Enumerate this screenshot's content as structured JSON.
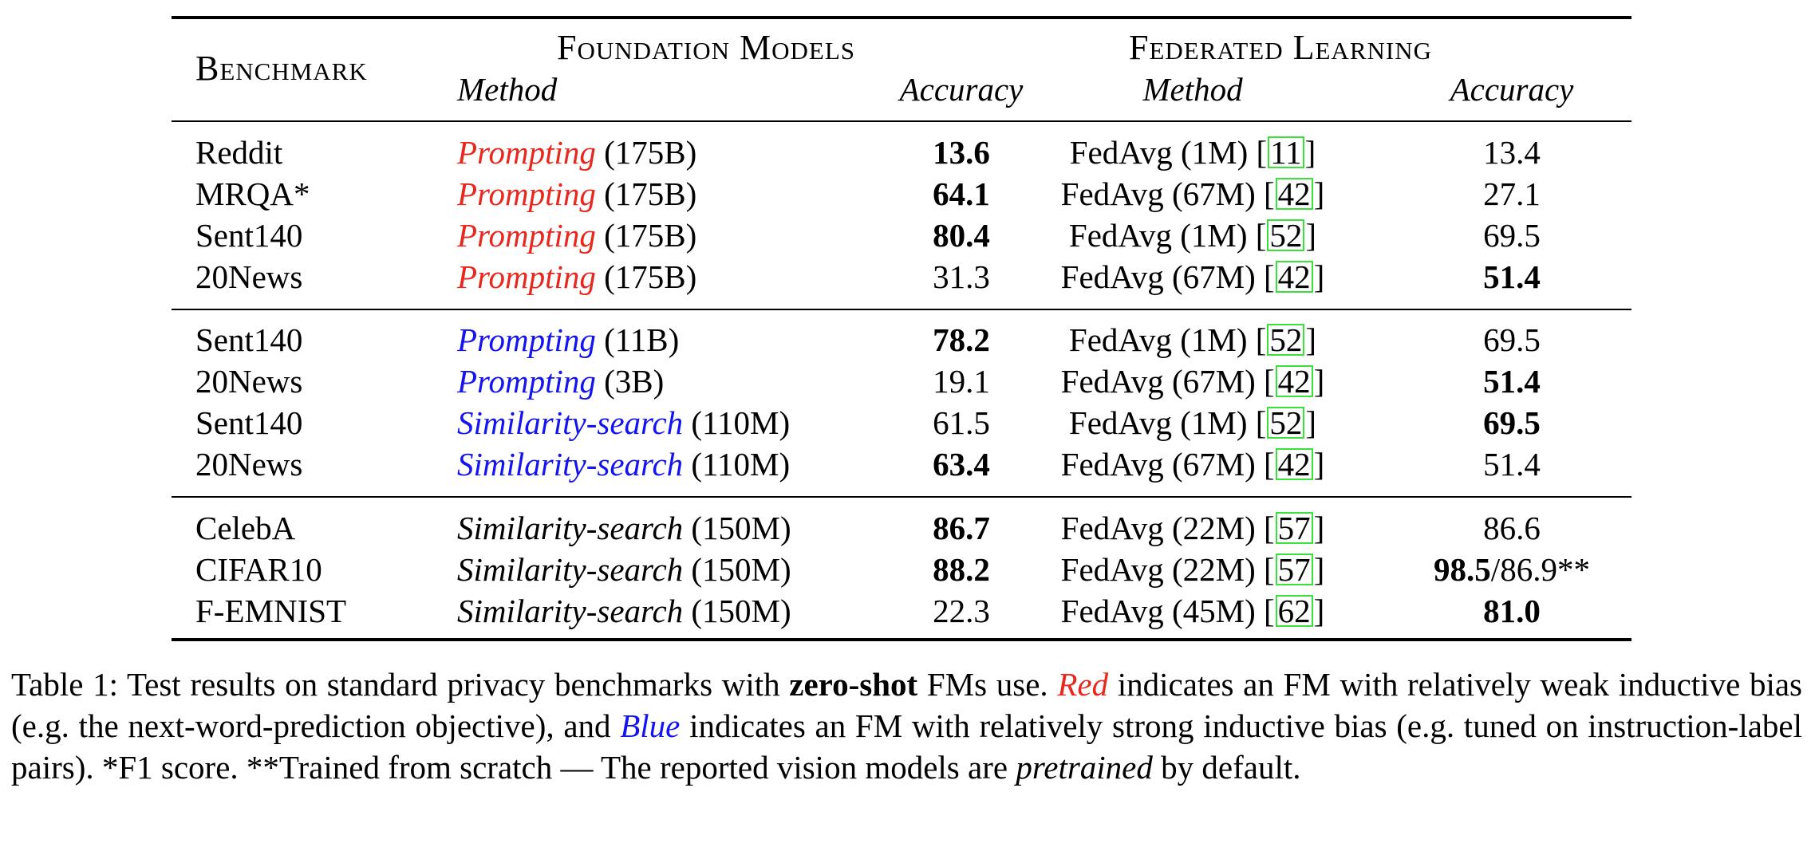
{
  "header": {
    "benchmark": "Benchmark",
    "group_fm": "Foundation Models",
    "group_fl": "Federated Learning",
    "method": "Method",
    "accuracy": "Accuracy"
  },
  "rows": [
    {
      "benchmark": "Reddit",
      "fm_method": "Prompting",
      "fm_size": " (175B)",
      "fm_color": "red",
      "fm_acc": "13.6",
      "fm_bold": true,
      "fl_method": "FedAvg (1M) [",
      "fl_cite": "11",
      "fl_close": "]",
      "fl_acc": "13.4",
      "fl_bold": false
    },
    {
      "benchmark": "MRQA*",
      "fm_method": "Prompting",
      "fm_size": " (175B)",
      "fm_color": "red",
      "fm_acc": "64.1",
      "fm_bold": true,
      "fl_method": "FedAvg (67M) [",
      "fl_cite": "42",
      "fl_close": "]",
      "fl_acc": "27.1",
      "fl_bold": false
    },
    {
      "benchmark": "Sent140",
      "fm_method": "Prompting",
      "fm_size": " (175B)",
      "fm_color": "red",
      "fm_acc": "80.4",
      "fm_bold": true,
      "fl_method": "FedAvg (1M) [",
      "fl_cite": "52",
      "fl_close": "]",
      "fl_acc": "69.5",
      "fl_bold": false
    },
    {
      "benchmark": "20News",
      "fm_method": "Prompting",
      "fm_size": " (175B)",
      "fm_color": "red",
      "fm_acc": "31.3",
      "fm_bold": false,
      "fl_method": "FedAvg (67M) [",
      "fl_cite": "42",
      "fl_close": "]",
      "fl_acc": "51.4",
      "fl_bold": true
    },
    {
      "benchmark": "Sent140",
      "fm_method": "Prompting",
      "fm_size": " (11B)",
      "fm_color": "blue",
      "fm_acc": "78.2",
      "fm_bold": true,
      "fl_method": "FedAvg (1M) [",
      "fl_cite": "52",
      "fl_close": "]",
      "fl_acc": "69.5",
      "fl_bold": false
    },
    {
      "benchmark": "20News",
      "fm_method": "Prompting",
      "fm_size": " (3B)",
      "fm_color": "blue",
      "fm_acc": "19.1",
      "fm_bold": false,
      "fl_method": "FedAvg (67M) [",
      "fl_cite": "42",
      "fl_close": "]",
      "fl_acc": "51.4",
      "fl_bold": true
    },
    {
      "benchmark": "Sent140",
      "fm_method": "Similarity-search",
      "fm_size": " (110M)",
      "fm_color": "blue",
      "fm_acc": "61.5",
      "fm_bold": false,
      "fl_method": "FedAvg (1M) [",
      "fl_cite": "52",
      "fl_close": "]",
      "fl_acc": "69.5",
      "fl_bold": true
    },
    {
      "benchmark": "20News",
      "fm_method": "Similarity-search",
      "fm_size": " (110M)",
      "fm_color": "blue",
      "fm_acc": "63.4",
      "fm_bold": true,
      "fl_method": "FedAvg (67M) [",
      "fl_cite": "42",
      "fl_close": "]",
      "fl_acc": "51.4",
      "fl_bold": false
    },
    {
      "benchmark": "CelebA",
      "fm_method": "Similarity-search",
      "fm_size": " (150M)",
      "fm_color": "black",
      "fm_acc": "86.7",
      "fm_bold": true,
      "fl_method": "FedAvg (22M) [",
      "fl_cite": "57",
      "fl_close": "]",
      "fl_acc": "86.6",
      "fl_bold": false
    },
    {
      "benchmark": "CIFAR10",
      "fm_method": "Similarity-search",
      "fm_size": " (150M)",
      "fm_color": "black",
      "fm_acc": "88.2",
      "fm_bold": true,
      "fl_method": "FedAvg (22M) [",
      "fl_cite": "57",
      "fl_close": "]",
      "fl_acc": "98.5",
      "fl_bold": true,
      "fl_acc_extra": "/86.9**"
    },
    {
      "benchmark": "F-EMNIST",
      "fm_method": "Similarity-search",
      "fm_size": " (150M)",
      "fm_color": "black",
      "fm_acc": "22.3",
      "fm_bold": false,
      "fl_method": "FedAvg (45M) [",
      "fl_cite": "62",
      "fl_close": "]",
      "fl_acc": "81.0",
      "fl_bold": true
    }
  ],
  "caption": {
    "p1": "Table 1: Test results on standard privacy benchmarks with ",
    "b1": "zero-shot",
    "p2": " FMs use. ",
    "red": "Red",
    "p3": " indicates an FM with relatively weak inductive bias (e.g. the next-word-prediction objective), and ",
    "blue": "Blue",
    "p4": " indicates an FM with relatively strong inductive bias (e.g. tuned on instruction-label pairs). *F1 score. **Trained from scratch — The reported vision models are ",
    "it": "pretrained",
    "p5": " by default."
  },
  "colors": {
    "red": "#e8281e",
    "blue": "#1414f0",
    "cite_border": "#39e239"
  }
}
